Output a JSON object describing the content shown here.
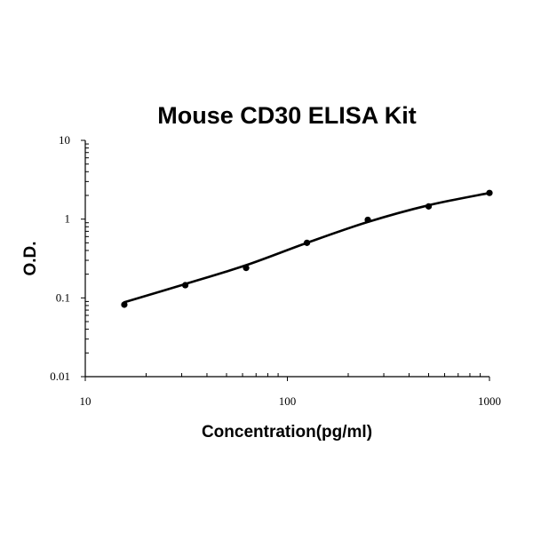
{
  "chart_data": {
    "type": "scatter",
    "title": "Mouse CD30 ELISA Kit",
    "xlabel": "Concentration(pg/ml)",
    "ylabel": "O.D.",
    "xscale": "log",
    "yscale": "log",
    "xlim": [
      10,
      1000
    ],
    "ylim": [
      0.01,
      10
    ],
    "x_ticks": [
      "10",
      "100",
      "1000"
    ],
    "y_ticks": [
      "0.01",
      "0.1",
      "1",
      "10"
    ],
    "grid": false,
    "series": [
      {
        "x": [
          15.6,
          31.25,
          62.5,
          125,
          250,
          500,
          1000
        ],
        "y": [
          0.082,
          0.145,
          0.24,
          0.5,
          0.98,
          1.45,
          2.15
        ]
      }
    ],
    "fit_curve": {
      "x": [
        15.6,
        31.25,
        62.5,
        125,
        250,
        500,
        1000
      ],
      "y": [
        0.088,
        0.15,
        0.26,
        0.5,
        0.92,
        1.5,
        2.15
      ]
    }
  }
}
